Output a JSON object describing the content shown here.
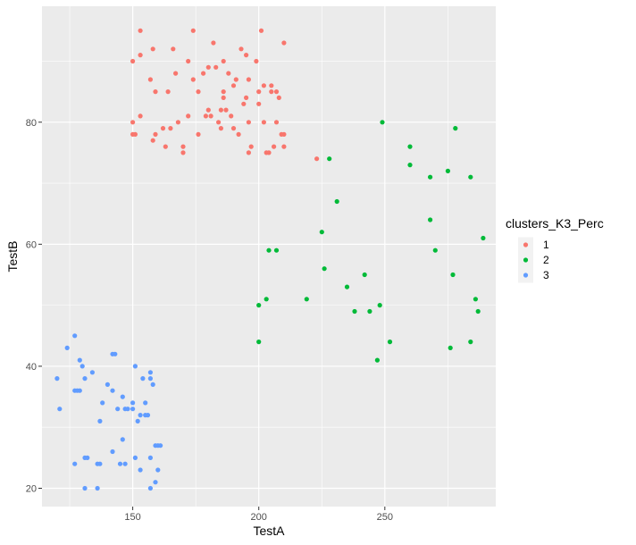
{
  "chart_data": {
    "type": "scatter",
    "xlabel": "TestA",
    "ylabel": "TestB",
    "xlim": [
      114,
      294
    ],
    "ylim": [
      17,
      99
    ],
    "x_ticks": [
      150,
      200,
      250
    ],
    "y_ticks": [
      20,
      40,
      60,
      80
    ],
    "x_tick_labels": [
      "150",
      "200",
      "250"
    ],
    "y_tick_labels": [
      "20",
      "40",
      "60",
      "80"
    ],
    "grid": true,
    "legend": {
      "title": "clusters_K3_Perc",
      "placement": "right"
    },
    "series": [
      {
        "name": "1",
        "color": "#F8766D",
        "points": [
          [
            153,
            95
          ],
          [
            174,
            95
          ],
          [
            201,
            95
          ],
          [
            158,
            92
          ],
          [
            172,
            90
          ],
          [
            150,
            90
          ],
          [
            180,
            89
          ],
          [
            193,
            92
          ],
          [
            153,
            91
          ],
          [
            166,
            92
          ],
          [
            182,
            93
          ],
          [
            210,
            93
          ],
          [
            195,
            91
          ],
          [
            186,
            90
          ],
          [
            199,
            90
          ],
          [
            188,
            88
          ],
          [
            157,
            87
          ],
          [
            174,
            87
          ],
          [
            183,
            89
          ],
          [
            178,
            88
          ],
          [
            196,
            87
          ],
          [
            202,
            86
          ],
          [
            167,
            88
          ],
          [
            191,
            87
          ],
          [
            205,
            86
          ],
          [
            159,
            85
          ],
          [
            164,
            85
          ],
          [
            176,
            85
          ],
          [
            186,
            85
          ],
          [
            190,
            86
          ],
          [
            200,
            85
          ],
          [
            205,
            85
          ],
          [
            207,
            85
          ],
          [
            186,
            84
          ],
          [
            195,
            84
          ],
          [
            185,
            82
          ],
          [
            194,
            83
          ],
          [
            180,
            82
          ],
          [
            187,
            82
          ],
          [
            200,
            83
          ],
          [
            208,
            84
          ],
          [
            172,
            81
          ],
          [
            179,
            81
          ],
          [
            181,
            81
          ],
          [
            189,
            81
          ],
          [
            153,
            81
          ],
          [
            150,
            80
          ],
          [
            165,
            79
          ],
          [
            168,
            80
          ],
          [
            184,
            80
          ],
          [
            196,
            80
          ],
          [
            202,
            80
          ],
          [
            207,
            80
          ],
          [
            162,
            79
          ],
          [
            190,
            79
          ],
          [
            159,
            78
          ],
          [
            150,
            78
          ],
          [
            151,
            78
          ],
          [
            176,
            78
          ],
          [
            192,
            78
          ],
          [
            209,
            78
          ],
          [
            210,
            78
          ],
          [
            158,
            77
          ],
          [
            185,
            79
          ],
          [
            163,
            76
          ],
          [
            170,
            76
          ],
          [
            197,
            76
          ],
          [
            206,
            76
          ],
          [
            210,
            76
          ],
          [
            170,
            75
          ],
          [
            196,
            75
          ],
          [
            203,
            75
          ],
          [
            204,
            75
          ],
          [
            223,
            74
          ]
        ]
      },
      {
        "name": "2",
        "color": "#00BA38",
        "points": [
          [
            249,
            80
          ],
          [
            278,
            79
          ],
          [
            260,
            76
          ],
          [
            228,
            74
          ],
          [
            260,
            73
          ],
          [
            275,
            72
          ],
          [
            268,
            71
          ],
          [
            284,
            71
          ],
          [
            231,
            67
          ],
          [
            268,
            64
          ],
          [
            225,
            62
          ],
          [
            289,
            61
          ],
          [
            204,
            59
          ],
          [
            207,
            59
          ],
          [
            270,
            59
          ],
          [
            226,
            56
          ],
          [
            242,
            55
          ],
          [
            277,
            55
          ],
          [
            235,
            53
          ],
          [
            219,
            51
          ],
          [
            203,
            51
          ],
          [
            286,
            51
          ],
          [
            248,
            50
          ],
          [
            200,
            50
          ],
          [
            238,
            49
          ],
          [
            244,
            49
          ],
          [
            287,
            49
          ],
          [
            200,
            44
          ],
          [
            252,
            44
          ],
          [
            284,
            44
          ],
          [
            276,
            43
          ],
          [
            247,
            41
          ]
        ]
      },
      {
        "name": "3",
        "color": "#619CFF",
        "points": [
          [
            127,
            45
          ],
          [
            124,
            43
          ],
          [
            142,
            42
          ],
          [
            143,
            42
          ],
          [
            129,
            41
          ],
          [
            130,
            40
          ],
          [
            151,
            40
          ],
          [
            134,
            39
          ],
          [
            157,
            39
          ],
          [
            120,
            38
          ],
          [
            131,
            38
          ],
          [
            154,
            38
          ],
          [
            157,
            38
          ],
          [
            140,
            37
          ],
          [
            158,
            37
          ],
          [
            127,
            36
          ],
          [
            128,
            36
          ],
          [
            129,
            36
          ],
          [
            142,
            36
          ],
          [
            146,
            35
          ],
          [
            138,
            34
          ],
          [
            150,
            34
          ],
          [
            155,
            34
          ],
          [
            144,
            33
          ],
          [
            147,
            33
          ],
          [
            148,
            33
          ],
          [
            150,
            33
          ],
          [
            121,
            33
          ],
          [
            153,
            32
          ],
          [
            155,
            32
          ],
          [
            156,
            32
          ],
          [
            137,
            31
          ],
          [
            152,
            31
          ],
          [
            146,
            28
          ],
          [
            159,
            27
          ],
          [
            160,
            27
          ],
          [
            161,
            27
          ],
          [
            142,
            26
          ],
          [
            131,
            25
          ],
          [
            132,
            25
          ],
          [
            151,
            25
          ],
          [
            157,
            25
          ],
          [
            127,
            24
          ],
          [
            136,
            24
          ],
          [
            137,
            24
          ],
          [
            145,
            24
          ],
          [
            147,
            24
          ],
          [
            160,
            23
          ],
          [
            153,
            23
          ],
          [
            159,
            21
          ],
          [
            131,
            20
          ],
          [
            136,
            20
          ],
          [
            157,
            20
          ]
        ]
      }
    ]
  }
}
